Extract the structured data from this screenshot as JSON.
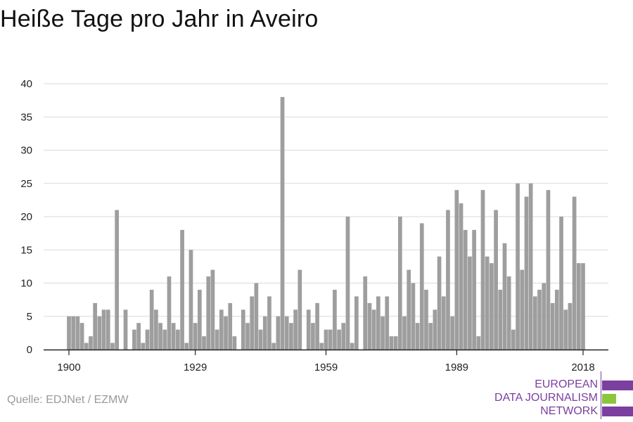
{
  "title": "Heiße Tage pro Jahr in Aveiro",
  "source": "Quelle: EDJNet / EZMW",
  "logo": {
    "lines": [
      "EUROPEAN",
      "DATA JOURNALISM",
      "NETWORK"
    ],
    "colors": {
      "purple": "#7b3fa0",
      "green": "#8cc63f"
    }
  },
  "colors": {
    "bar": "#9e9e9e",
    "grid": "#d9d9d9",
    "axis": "#222222",
    "text": "#222222"
  },
  "chart_data": {
    "type": "bar",
    "x_start": 1900,
    "x_end": 2018,
    "x_ticks": [
      1900,
      1929,
      1959,
      1989,
      2018
    ],
    "y_ticks": [
      0,
      5,
      10,
      15,
      20,
      25,
      30,
      35,
      40
    ],
    "ylim": [
      0,
      40
    ],
    "grid": true,
    "values": [
      5,
      5,
      5,
      4,
      1,
      2,
      7,
      5,
      6,
      6,
      1,
      21,
      0,
      6,
      0,
      3,
      4,
      1,
      3,
      9,
      6,
      4,
      3,
      11,
      4,
      3,
      18,
      1,
      15,
      4,
      9,
      2,
      11,
      12,
      3,
      6,
      5,
      7,
      2,
      0,
      6,
      4,
      8,
      10,
      3,
      5,
      8,
      1,
      5,
      38,
      5,
      4,
      6,
      12,
      0,
      6,
      4,
      7,
      1,
      3,
      3,
      9,
      3,
      4,
      20,
      1,
      8,
      0,
      11,
      7,
      6,
      8,
      5,
      8,
      2,
      2,
      20,
      5,
      12,
      10,
      4,
      19,
      9,
      4,
      6,
      14,
      8,
      21,
      5,
      24,
      22,
      18,
      14,
      18,
      2,
      24,
      14,
      13,
      21,
      9,
      16,
      11,
      3,
      25,
      12,
      23,
      25,
      8,
      9,
      10,
      24,
      7,
      9,
      20,
      6,
      7,
      23,
      13,
      13
    ]
  }
}
